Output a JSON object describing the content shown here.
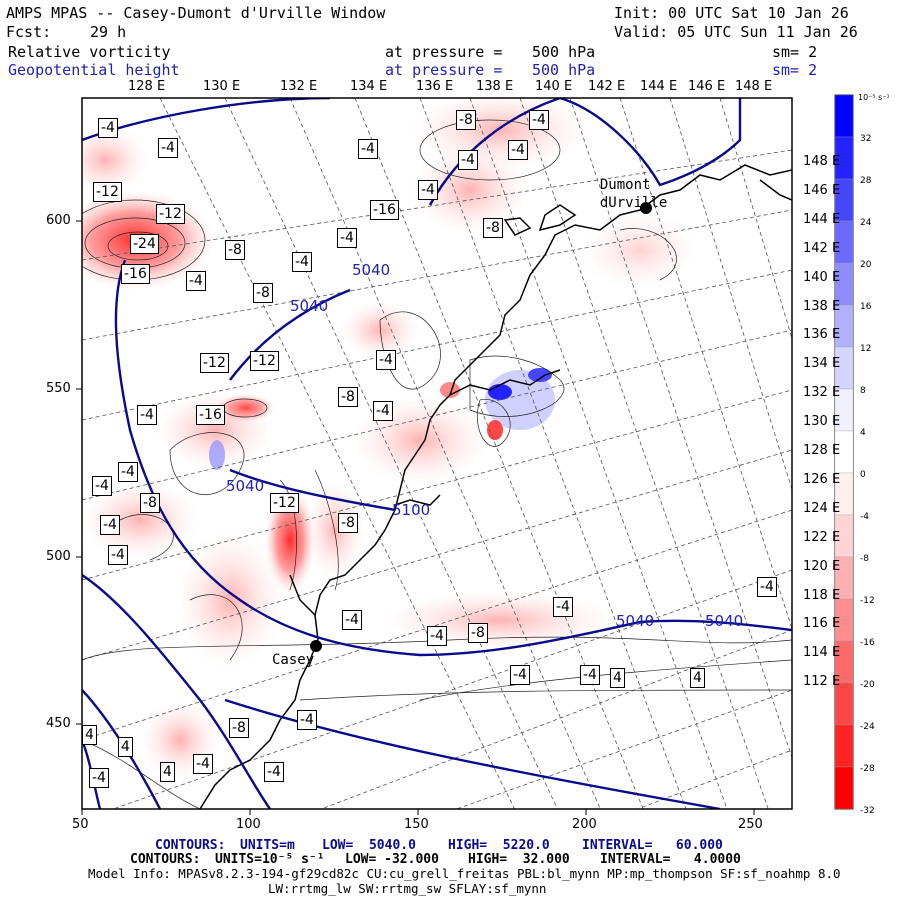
{
  "header": {
    "title": "AMPS MPAS -- Casey-Dumont d'Urville Window",
    "init": "Init: 00 UTC Sat 10 Jan 26",
    "fcst_label": "Fcst:",
    "fcst_value": "29 h",
    "valid": "Valid: 05 UTC Sun 11 Jan 26"
  },
  "fields": [
    {
      "name": "Relative vorticity",
      "level_text": "at pressure =",
      "level_value": "500 hPa",
      "smooth": "sm= 2"
    },
    {
      "name": "Geopotential height",
      "level_text": "at pressure =",
      "level_value": "500 hPa",
      "smooth": "sm= 2"
    }
  ],
  "top_lon_labels": [
    "128 E",
    "130 E",
    "132 E",
    "134 E",
    "136 E",
    "138 E",
    "140 E",
    "142 E",
    "144 E",
    "146 E",
    "148 E"
  ],
  "right_lon_labels": [
    "148 E",
    "146 E",
    "144 E",
    "142 E",
    "140 E",
    "138 E",
    "136 E",
    "134 E",
    "132 E",
    "130 E",
    "128 E",
    "126 E",
    "124 E",
    "122 E",
    "120 E",
    "118 E",
    "116 E",
    "114 E",
    "112 E"
  ],
  "x_ticks": [
    "50",
    "100",
    "150",
    "200",
    "250"
  ],
  "y_ticks": [
    "600",
    "550",
    "500",
    "450"
  ],
  "colorbar": {
    "unit": "10⁻⁵ s⁻¹",
    "labels": [
      "32",
      "28",
      "24",
      "20",
      "16",
      "12",
      "8",
      "4",
      "0",
      "-4",
      "-8",
      "-12",
      "-16",
      "-20",
      "-24",
      "-28",
      "-32"
    ],
    "colors": [
      "#0000ff",
      "#2323ff",
      "#4646ff",
      "#6a6aff",
      "#8d8dff",
      "#b1b1ff",
      "#d4d4ff",
      "#f0f0ff",
      "#ffffff",
      "#fff0f0",
      "#ffd4d4",
      "#ffb1b1",
      "#ff8d8d",
      "#ff6a6a",
      "#ff4646",
      "#ff2323",
      "#ff0000"
    ]
  },
  "map": {
    "stations": [
      "Dumont dUrville",
      "Casey"
    ],
    "height_labels": [
      "5040",
      "5040",
      "5040",
      "5040",
      "5040",
      "5100"
    ],
    "vort_labels": [
      "-4",
      "-4",
      "-4",
      "-12",
      "-12",
      "-24",
      "-16",
      "-8",
      "-4",
      "-4",
      "-8",
      "-4",
      "-16",
      "-4",
      "-8",
      "-4",
      "-4",
      "-4",
      "-8",
      "-12",
      "-12",
      "-16",
      "-8",
      "-4",
      "-4",
      "-4",
      "-4",
      "-8",
      "-12",
      "-8",
      "-4",
      "-4",
      "-4",
      "-4",
      "-8",
      "-4",
      "-4",
      "-4",
      "-4",
      "4",
      "4",
      "4",
      "4",
      "4",
      "-4",
      "-4",
      "-8",
      "-4",
      "-4",
      "-4"
    ]
  },
  "footer": {
    "line1_label": "CONTOURS:",
    "line1_units": "UNITS=m",
    "line1_low": "LOW=  5040.0",
    "line1_high": "HIGH=  5220.0",
    "line1_interval": "INTERVAL=   60.000",
    "line2_label": "CONTOURS:",
    "line2_units": "UNITS=10⁻⁵ s⁻¹",
    "line2_low": "LOW= -32.000",
    "line2_high": "HIGH=  32.000",
    "line2_interval": "INTERVAL=   4.0000",
    "model_info": "Model Info: MPASv8.2.3-194-gf29cd82c CU:cu_grell_freitas PBL:bl_mynn MP:mp_thompson SF:sf_noahmp 8.0",
    "model_info2": "LW:rrtmg_lw SW:rrtmg_sw SFLAY:sf_mynn"
  }
}
